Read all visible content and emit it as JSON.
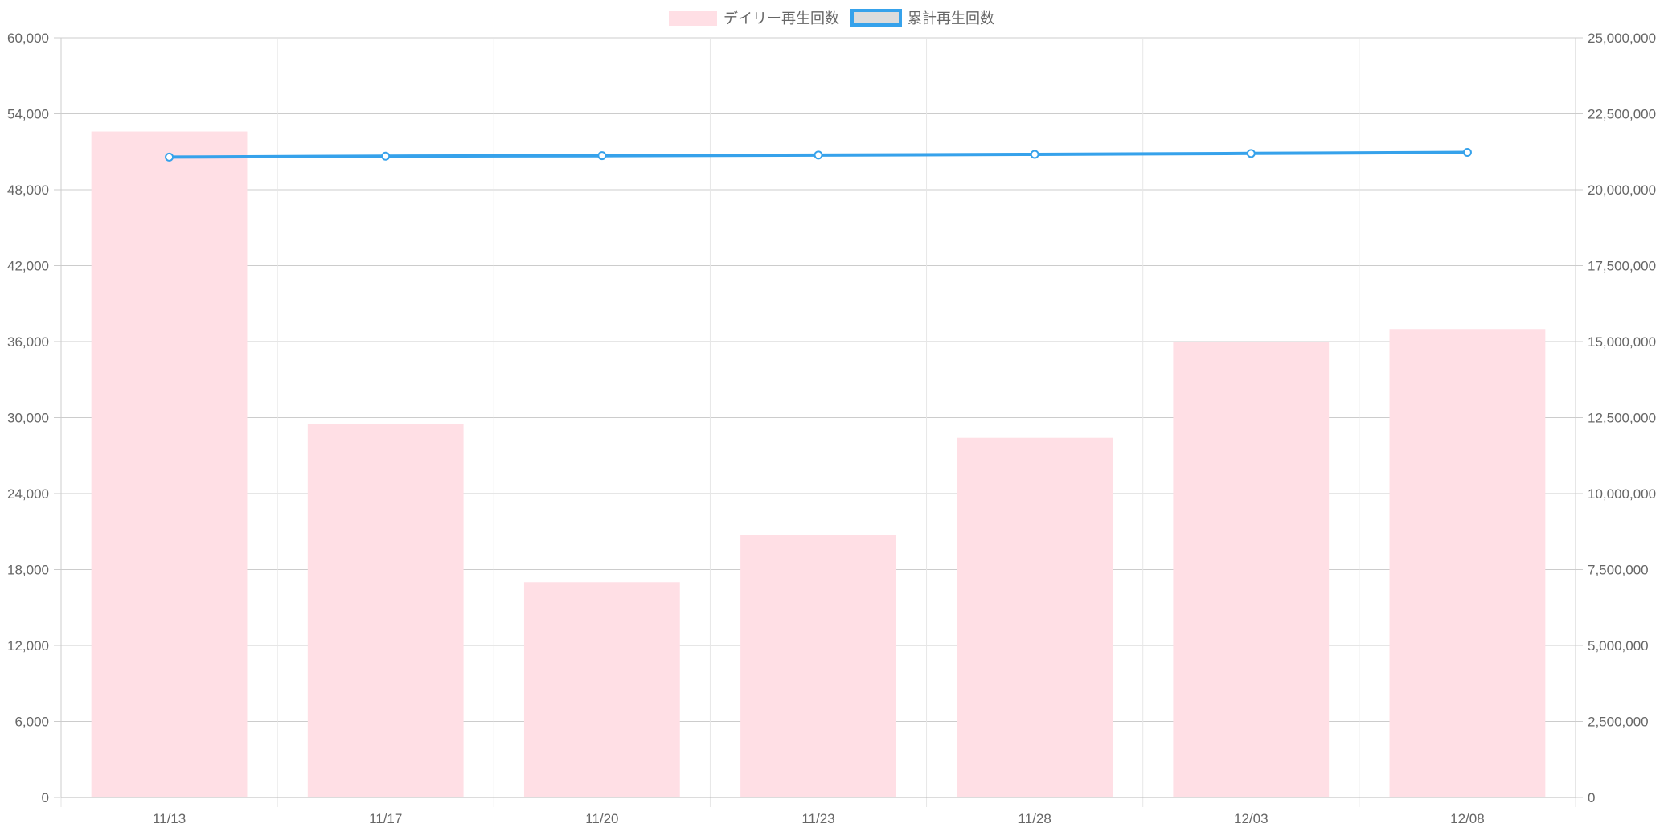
{
  "chart_data": {
    "type": "bar",
    "categories": [
      "11/13",
      "11/17",
      "11/20",
      "11/23",
      "11/28",
      "12/03",
      "12/08"
    ],
    "series": [
      {
        "name": "デイリー再生回数",
        "type": "bar",
        "axis": "left",
        "color": "#ffdfe5",
        "values": [
          52600,
          29500,
          17000,
          20700,
          28400,
          36000,
          37000
        ]
      },
      {
        "name": "累計再生回数",
        "type": "line",
        "axis": "right",
        "color": "#36a2eb",
        "values": [
          21075000,
          21105000,
          21120000,
          21140000,
          21165000,
          21195000,
          21230000
        ]
      }
    ],
    "y_left": {
      "min": 0,
      "max": 60000,
      "ticks": [
        "60,000",
        "54,000",
        "48,000",
        "42,000",
        "36,000",
        "30,000",
        "24,000",
        "18,000",
        "12,000",
        "6,000",
        "0"
      ]
    },
    "y_right": {
      "min": 0,
      "max": 25000000,
      "ticks": [
        "25,000,000",
        "22,500,000",
        "20,000,000",
        "17,500,000",
        "15,000,000",
        "12,500,000",
        "10,000,000",
        "7,500,000",
        "5,000,000",
        "2,500,000",
        "0"
      ]
    },
    "grid": true,
    "legend_position": "top-center"
  },
  "colors": {
    "grid_horizontal": "#cccccc",
    "grid_vertical": "#e6e6e6",
    "axis_text": "#666666",
    "legend_line_fill": "#dcdcdc"
  }
}
